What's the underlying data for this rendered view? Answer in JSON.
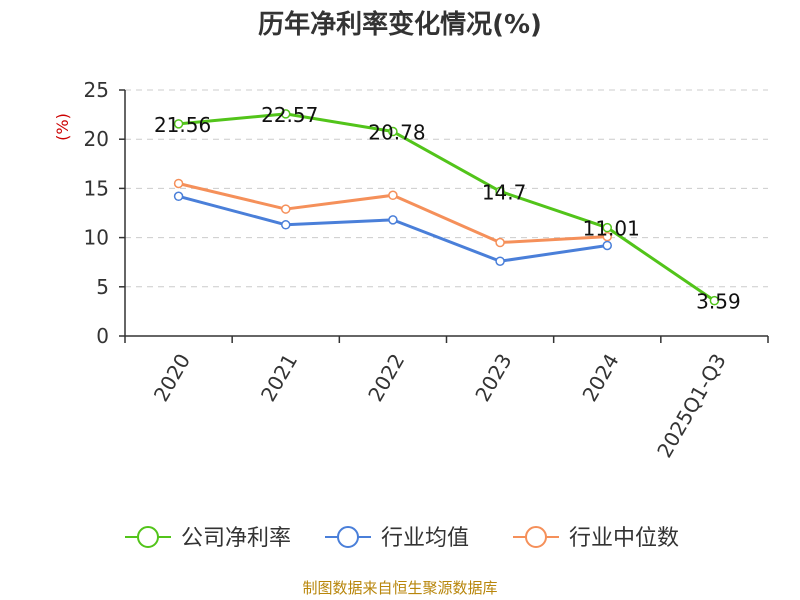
{
  "chart_data": {
    "type": "line",
    "title": "历年净利率变化情况(%)",
    "y_unit": "(%)",
    "categories": [
      "2020",
      "2021",
      "2022",
      "2023",
      "2024",
      "2025Q1-Q3"
    ],
    "ylim": [
      0,
      25
    ],
    "yticks": [
      "0",
      "5",
      "10",
      "15",
      "20",
      "25"
    ],
    "grid": true,
    "legend_position": "bottom",
    "series": [
      {
        "name": "公司净利率",
        "color": "#52c41a",
        "values": [
          21.56,
          22.57,
          20.78,
          14.7,
          11.01,
          3.59
        ],
        "labels": [
          "21.56",
          "22.57",
          "20.78",
          "14.7",
          "11.01",
          "3.59"
        ]
      },
      {
        "name": "行业均值",
        "color": "#4a7fd9",
        "values": [
          14.2,
          11.3,
          11.8,
          7.6,
          9.2,
          null
        ]
      },
      {
        "name": "行业中位数",
        "color": "#f5905a",
        "values": [
          15.5,
          12.9,
          14.3,
          9.5,
          10.1,
          null
        ]
      }
    ],
    "source": "制图数据来自恒生聚源数据库"
  }
}
